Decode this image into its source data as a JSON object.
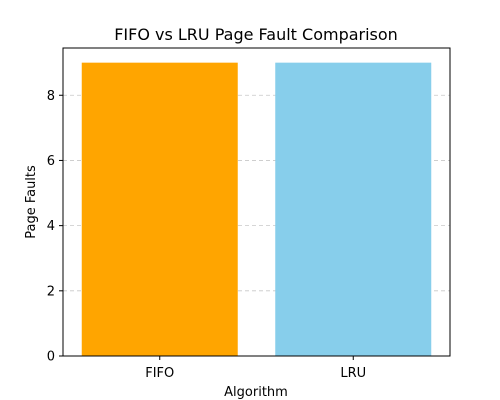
{
  "chart_data": {
    "type": "bar",
    "title": "FIFO vs LRU Page Fault Comparison",
    "xlabel": "Algorithm",
    "ylabel": "Page Faults",
    "categories": [
      "FIFO",
      "LRU"
    ],
    "values": [
      9,
      9
    ],
    "bar_colors": [
      "#ffa500",
      "#87ceeb"
    ],
    "ylim": [
      0,
      9.45
    ],
    "yticks": [
      0,
      2,
      4,
      6,
      8
    ],
    "grid": {
      "axis": "y",
      "style": "dashed",
      "color": "#c8c8c8"
    }
  }
}
